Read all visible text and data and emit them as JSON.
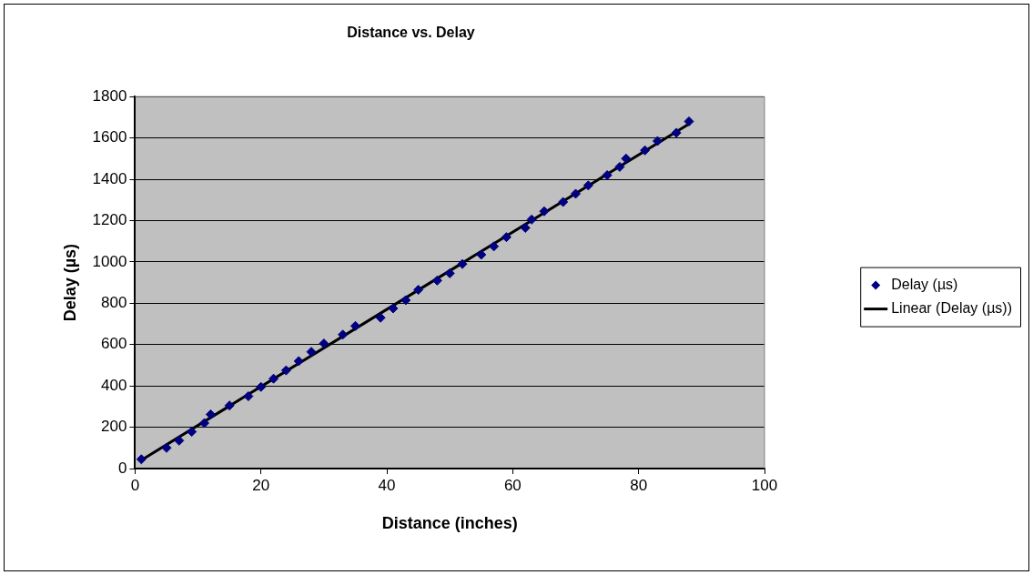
{
  "chart_data": {
    "type": "scatter",
    "title": "Distance vs. Delay",
    "xlabel": "Distance (inches)",
    "ylabel": "Delay (µs)",
    "x": [
      1,
      5,
      7,
      9,
      11,
      12,
      15,
      18,
      20,
      22,
      24,
      26,
      28,
      30,
      33,
      35,
      39,
      41,
      43,
      45,
      48,
      50,
      52,
      55,
      57,
      59,
      62,
      63,
      65,
      68,
      70,
      72,
      75,
      77,
      78,
      81,
      83,
      86,
      88
    ],
    "series": [
      {
        "name": "Delay (µs)",
        "color": "#000080",
        "type": "scatter",
        "marker": "diamond",
        "values": [
          45,
          100,
          135,
          178,
          220,
          262,
          305,
          350,
          395,
          435,
          475,
          520,
          565,
          605,
          648,
          690,
          730,
          775,
          815,
          865,
          910,
          945,
          990,
          1035,
          1075,
          1120,
          1165,
          1205,
          1245,
          1290,
          1330,
          1370,
          1420,
          1460,
          1500,
          1540,
          1585,
          1625,
          1680
        ]
      },
      {
        "name": "Linear (Delay (µs))",
        "color": "#000000",
        "type": "line",
        "marker": "none",
        "line_style": "solid",
        "x": [
          1,
          88
        ],
        "values": [
          41,
          1668
        ]
      }
    ],
    "xlim": [
      0,
      100
    ],
    "xticks": [
      0,
      20,
      40,
      60,
      80,
      100
    ],
    "ylim": [
      0,
      1800
    ],
    "yticks": [
      0,
      200,
      400,
      600,
      800,
      1000,
      1200,
      1400,
      1600,
      1800
    ],
    "grid": "y",
    "legend": "right"
  }
}
